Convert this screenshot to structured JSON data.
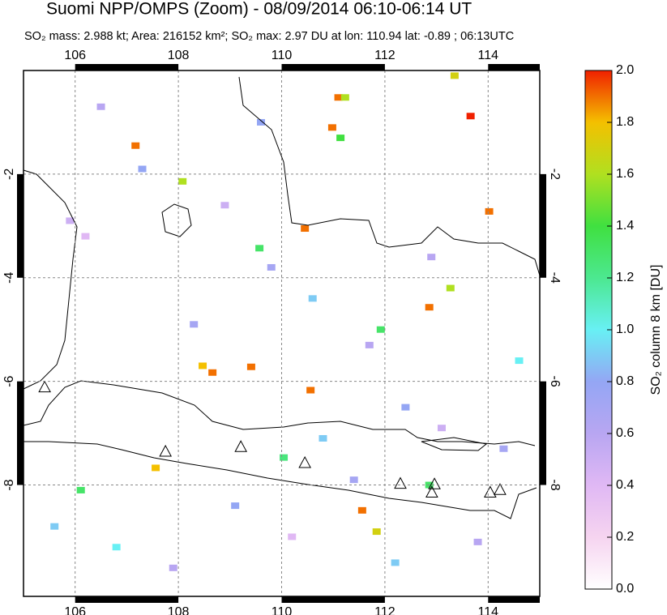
{
  "chart_data": {
    "type": "map",
    "title": "Suomi NPP/OMPS (Zoom) - 08/09/2014 06:10-06:14 UT",
    "subtitle": "SO₂ mass: 2.988 kt; Area: 216152 km²; SO₂ max: 2.97 DU at lon: 110.94 lat: -0.89 ; 06:13UTC",
    "colorbar_label": "SO₂ column 8 km [DU]",
    "xlim": [
      105,
      115
    ],
    "ylim": [
      -10.15,
      0
    ],
    "xticks": [
      106,
      108,
      110,
      112,
      114
    ],
    "yticks": [
      -2,
      -4,
      -6,
      -8
    ],
    "grid": true,
    "clim": [
      0,
      2
    ],
    "cticks": [
      {
        "value": 0,
        "label": "0.0"
      },
      0.2,
      0.4,
      0.6,
      0.8,
      {
        "value": 1,
        "label": "1.0"
      },
      1.2,
      1.4,
      1.6,
      1.8,
      {
        "value": 2,
        "label": "2.0"
      }
    ],
    "colormap": [
      "#ffffff",
      "#f6d4f0",
      "#e0b8f4",
      "#b8a6f2",
      "#94a6f4",
      "#68f0f4",
      "#4ce890",
      "#40e040",
      "#b0e020",
      "#f4c000",
      "#f02000"
    ],
    "pixels": {
      "x": [
        113.66,
        111.1,
        110.98,
        107.17,
        114.02,
        110.45,
        112.86,
        109.41,
        108.47,
        108.66,
        110.56,
        107.56,
        111.56,
        111.84,
        113.35,
        109.57,
        111.92,
        112.86,
        110.04,
        106.11,
        111.14,
        113.27,
        111.23,
        108.08,
        106.5,
        107.3,
        108.9,
        109.8,
        110.6,
        111.7,
        112.4,
        113.1,
        114.3,
        105.6,
        106.8,
        107.9,
        109.1,
        110.2,
        111.4,
        112.2,
        113.8,
        114.6,
        106.2,
        108.3,
        109.6,
        112.9,
        105.9,
        110.8
      ],
      "y": [
        -0.88,
        -0.52,
        -1.1,
        -1.45,
        -2.72,
        -3.05,
        -4.57,
        -5.72,
        -5.7,
        -5.83,
        -6.17,
        -7.67,
        -8.49,
        -8.9,
        -0.1,
        -3.43,
        -5.0,
        -8.0,
        -7.47,
        -8.1,
        -1.3,
        -4.2,
        -0.52,
        -2.14,
        -0.7,
        -1.9,
        -2.6,
        -3.8,
        -4.4,
        -5.3,
        -6.5,
        -6.9,
        -7.3,
        -8.8,
        -9.2,
        -9.6,
        -8.4,
        -9.0,
        -7.9,
        -9.5,
        -9.1,
        -5.6,
        -3.2,
        -4.9,
        -1.0,
        -3.6,
        -2.9,
        -7.1
      ],
      "values": [
        2.0,
        1.9,
        1.9,
        1.9,
        1.9,
        1.9,
        1.9,
        1.9,
        1.8,
        1.9,
        1.9,
        1.8,
        1.9,
        1.7,
        1.7,
        1.3,
        1.3,
        1.3,
        1.25,
        1.3,
        1.4,
        1.6,
        1.6,
        1.6,
        0.6,
        0.8,
        0.5,
        0.7,
        0.9,
        0.6,
        0.8,
        0.5,
        0.7,
        0.9,
        1.0,
        0.6,
        0.8,
        0.4,
        0.7,
        0.9,
        0.6,
        1.0,
        0.4,
        0.7,
        0.8,
        0.6,
        0.5,
        0.9
      ]
    },
    "volcanoes": {
      "x": [
        105.41,
        107.75,
        109.21,
        110.45,
        112.3,
        112.96,
        112.91,
        114.04,
        114.23
      ],
      "y": [
        -6.11,
        -7.35,
        -7.26,
        -7.57,
        -7.97,
        -7.98,
        -8.14,
        -8.14,
        -8.09
      ]
    }
  }
}
